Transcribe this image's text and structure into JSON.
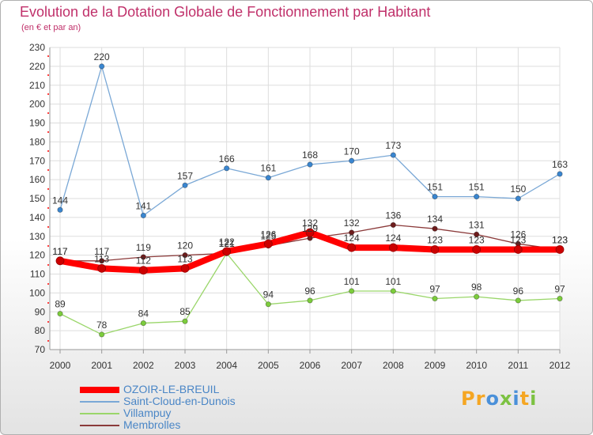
{
  "chart_data": {
    "type": "line",
    "title": "Evolution de la Dotation Globale de Fonctionnement par Habitant",
    "subtitle": "(en € et par an)",
    "x": [
      "2000",
      "2001",
      "2002",
      "2003",
      "2004",
      "2005",
      "2006",
      "2007",
      "2008",
      "2009",
      "2010",
      "2011",
      "2012"
    ],
    "y_ticks": [
      "70",
      "80",
      "90",
      "100",
      "110",
      "120",
      "130",
      "140",
      "150",
      "160",
      "170",
      "180",
      "190",
      "200",
      "210",
      "220",
      "230"
    ],
    "ylim": [
      70,
      230
    ],
    "grid": true,
    "legend_position": "bottom-left",
    "series": [
      {
        "name": "OZOIR-LE-BREUIL",
        "color": "#ff0000",
        "marker_color": "#cc0000",
        "values": [
          117,
          113,
          112,
          113,
          122,
          126,
          132,
          124,
          124,
          123,
          123,
          123,
          123
        ],
        "labels": [
          "117",
          "113",
          "112",
          "113",
          "122",
          "126",
          "132",
          "124",
          "124",
          "123",
          "123",
          "123",
          "123"
        ]
      },
      {
        "name": "Saint-Cloud-en-Dunois",
        "color": "#7aa8d6",
        "marker_color": "#3a86d0",
        "values": [
          144,
          220,
          141,
          157,
          166,
          161,
          168,
          170,
          173,
          151,
          151,
          150,
          163
        ],
        "labels": [
          "144",
          "220",
          "141",
          "157",
          "166",
          "161",
          "168",
          "170",
          "173",
          "151",
          "151",
          "150",
          "163"
        ]
      },
      {
        "name": "Villampuy",
        "color": "#9ad66a",
        "marker_color": "#7ccc3c",
        "values": [
          89,
          78,
          84,
          85,
          121,
          94,
          96,
          101,
          101,
          97,
          98,
          96,
          97
        ],
        "labels": [
          "89",
          "78",
          "84",
          "85",
          "121",
          "94",
          "96",
          "101",
          "101",
          "97",
          "98",
          "96",
          "97"
        ]
      },
      {
        "name": "Membrolles",
        "color": "#8b3a3a",
        "marker_color": "#6e1c1c",
        "values": [
          117,
          117,
          119,
          120,
          121,
          125,
          129,
          132,
          136,
          134,
          131,
          126,
          123
        ],
        "labels": [
          "117",
          "117",
          "119",
          "120",
          "121",
          "125",
          "129",
          "132",
          "136",
          "134",
          "131",
          "126",
          "123"
        ]
      }
    ]
  },
  "logo": {
    "letters": [
      "P",
      "r",
      "o",
      "x",
      "i",
      "t",
      "i"
    ],
    "colors": [
      "#f5a623",
      "#f5a623",
      "#4a90d9",
      "#7cc242",
      "#4a90d9",
      "#f5a623",
      "#7cc242"
    ]
  }
}
